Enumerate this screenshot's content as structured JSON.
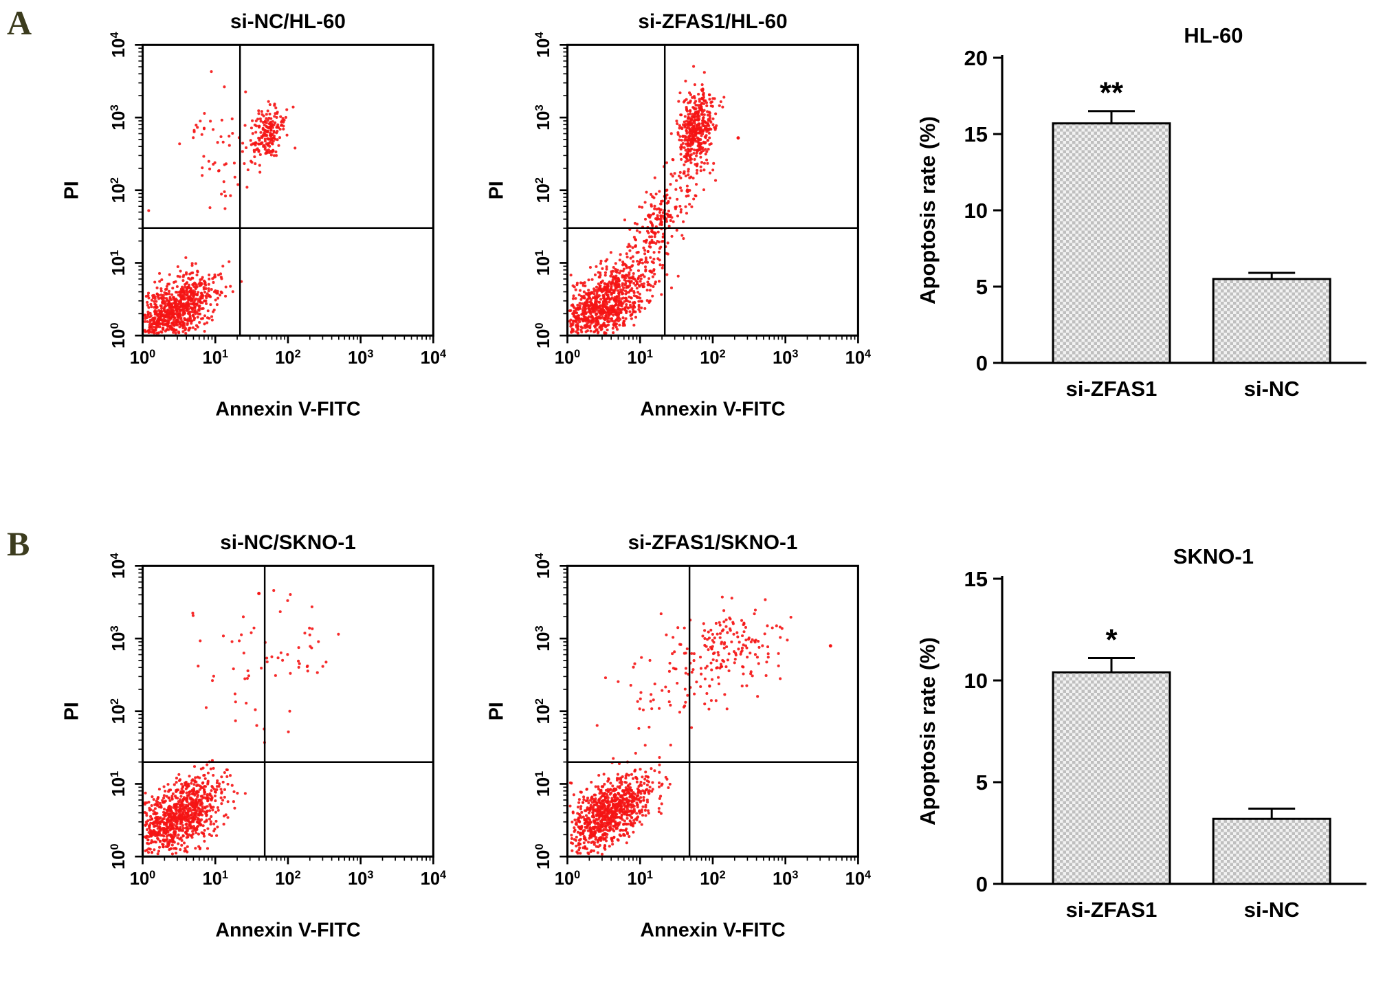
{
  "figure": {
    "panels": [
      {
        "label": "A"
      },
      {
        "label": "B"
      }
    ],
    "panel_label_color": "#3c3c1e",
    "point_color": "#f51414",
    "axis_color": "#000000",
    "bar_texture_dark": "#bfbfbf",
    "bar_texture_light": "#f2f2f2"
  },
  "chart_data": [
    {
      "type": "scatter",
      "panel": "A",
      "title": "si-NC/HL-60",
      "xlabel": "Annexin V-FITC",
      "ylabel": "PI",
      "x_log_range": [
        0,
        4
      ],
      "y_log_range": [
        0,
        4
      ],
      "point_color": "#f51414",
      "quadrant_gate": {
        "x_log": 1.34,
        "y_log": 1.48
      },
      "seed": 101,
      "populations": [
        {
          "name": "viable-lower-left",
          "center_log": [
            0.42,
            0.32
          ],
          "spread_log": [
            0.3,
            0.26
          ],
          "corr": 0.55,
          "n": 900
        },
        {
          "name": "late-apoptotic-upper-right",
          "center_log": [
            1.74,
            2.82
          ],
          "spread_log": [
            0.12,
            0.2
          ],
          "corr": 0.25,
          "n": 190
        },
        {
          "name": "necrotic-upper-left",
          "center_log": [
            1.02,
            2.5
          ],
          "spread_log": [
            0.26,
            0.42
          ],
          "corr": 0.0,
          "n": 55
        }
      ],
      "extra_points": []
    },
    {
      "type": "scatter",
      "panel": "A",
      "title": "si-ZFAS1/HL-60",
      "xlabel": "Annexin V-FITC",
      "ylabel": "PI",
      "x_log_range": [
        0,
        4
      ],
      "y_log_range": [
        0,
        4
      ],
      "point_color": "#f51414",
      "quadrant_gate": {
        "x_log": 1.34,
        "y_log": 1.48
      },
      "seed": 202,
      "populations": [
        {
          "name": "viable-lower-left",
          "center_log": [
            0.5,
            0.42
          ],
          "spread_log": [
            0.33,
            0.3
          ],
          "corr": 0.6,
          "n": 950
        },
        {
          "name": "apoptotic-bridge",
          "center_log": [
            1.25,
            1.55
          ],
          "spread_log": [
            0.28,
            0.45
          ],
          "corr": 0.8,
          "n": 230
        },
        {
          "name": "late-apoptotic-upper-right",
          "center_log": [
            1.78,
            2.85
          ],
          "spread_log": [
            0.13,
            0.28
          ],
          "corr": 0.3,
          "n": 420
        }
      ],
      "extra_points": [
        [
          2.35,
          2.72
        ]
      ]
    },
    {
      "type": "bar",
      "panel": "A",
      "title": "HL-60",
      "ylabel": "Apoptosis rate (%)",
      "ylim": [
        0,
        20
      ],
      "yticks": [
        0,
        5,
        10,
        15,
        20
      ],
      "categories": [
        "si-ZFAS1",
        "si-NC"
      ],
      "values": [
        15.7,
        5.5
      ],
      "errors": [
        0.8,
        0.4
      ],
      "significance": [
        "**",
        ""
      ]
    },
    {
      "type": "scatter",
      "panel": "B",
      "title": "si-NC/SKNO-1",
      "xlabel": "Annexin V-FITC",
      "ylabel": "PI",
      "x_log_range": [
        0,
        4
      ],
      "y_log_range": [
        0,
        4
      ],
      "point_color": "#f51414",
      "quadrant_gate": {
        "x_log": 1.68,
        "y_log": 1.3
      },
      "seed": 303,
      "populations": [
        {
          "name": "viable-lower-left",
          "center_log": [
            0.5,
            0.55
          ],
          "spread_log": [
            0.3,
            0.27
          ],
          "corr": 0.5,
          "n": 900
        },
        {
          "name": "sparse-upper-right",
          "center_log": [
            1.95,
            2.85
          ],
          "spread_log": [
            0.42,
            0.38
          ],
          "corr": 0.1,
          "n": 42
        },
        {
          "name": "sparse-upper-left",
          "center_log": [
            1.25,
            2.3
          ],
          "spread_log": [
            0.35,
            0.5
          ],
          "corr": 0.0,
          "n": 22
        }
      ],
      "extra_points": [
        [
          1.6,
          3.62
        ]
      ]
    },
    {
      "type": "scatter",
      "panel": "B",
      "title": "si-ZFAS1/SKNO-1",
      "xlabel": "Annexin V-FITC",
      "ylabel": "PI",
      "x_log_range": [
        0,
        4
      ],
      "y_log_range": [
        0,
        4
      ],
      "point_color": "#f51414",
      "quadrant_gate": {
        "x_log": 1.68,
        "y_log": 1.3
      },
      "seed": 404,
      "populations": [
        {
          "name": "viable-lower-left",
          "center_log": [
            0.55,
            0.6
          ],
          "spread_log": [
            0.31,
            0.28
          ],
          "corr": 0.55,
          "n": 920
        },
        {
          "name": "late-apoptotic-upper-right",
          "center_log": [
            2.25,
            2.88
          ],
          "spread_log": [
            0.33,
            0.28
          ],
          "corr": 0.2,
          "n": 150
        },
        {
          "name": "apoptotic-left-smear",
          "center_log": [
            1.45,
            2.35
          ],
          "spread_log": [
            0.42,
            0.5
          ],
          "corr": 0.3,
          "n": 70
        }
      ],
      "extra_points": [
        [
          3.62,
          2.9
        ]
      ]
    },
    {
      "type": "bar",
      "panel": "B",
      "title": "SKNO-1",
      "ylabel": "Apoptosis rate (%)",
      "ylim": [
        0,
        15
      ],
      "yticks": [
        0,
        5,
        10,
        15
      ],
      "categories": [
        "si-ZFAS1",
        "si-NC"
      ],
      "values": [
        10.4,
        3.2
      ],
      "errors": [
        0.7,
        0.5
      ],
      "significance": [
        "*",
        ""
      ]
    }
  ]
}
